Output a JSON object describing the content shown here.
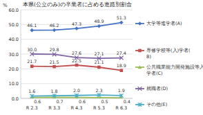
{
  "chart_data": {
    "type": "line",
    "title": "本県(公立のみ)の卒業者に占める進路別割合",
    "y_label": "%",
    "categories": [
      "R 2.3",
      "R 3.3",
      "R 4.3",
      "R 5.3",
      "R 6.3"
    ],
    "series": [
      {
        "name": "大学等進学者(A)",
        "color": "#4472c4",
        "marker": "diamond",
        "values": [
          46.1,
          46.2,
          47.3,
          48.9,
          51.3
        ],
        "value_labels": [
          "46.1",
          "46.2",
          "47.3",
          "48.9",
          "51.3"
        ]
      },
      {
        "name": "専修学校等(入)学者(B)",
        "color": "#c0504d",
        "marker": "square",
        "values": [
          21.7,
          21.5,
          22.5,
          21.1,
          18.9
        ],
        "value_labels": [
          "21.7",
          "21.5",
          "22.5",
          "21.1",
          "18.9"
        ]
      },
      {
        "name": "公共職業能力開発施設等入学者(C)",
        "color": "#9bbb59",
        "marker": "triangle",
        "values": [
          0.6,
          0.7,
          0.6,
          0.5,
          0.4
        ],
        "value_labels": [
          "0.6",
          "0.7",
          "0.6",
          "0.5",
          "0.4"
        ]
      },
      {
        "name": "就職者(D)",
        "color": "#8064a2",
        "marker": "x",
        "values": [
          30.0,
          29.8,
          27.6,
          27.1,
          27.4
        ],
        "value_labels": [
          "30.0",
          "29.8",
          "27.6",
          "27.1",
          "27.4"
        ]
      },
      {
        "name": "その他(E)",
        "color": "#4bacc6",
        "marker": "star",
        "values": [
          1.6,
          1.8,
          2.0,
          2.3,
          1.9
        ],
        "value_labels": [
          "1.6",
          "1.8",
          "2.0",
          "2.3",
          "1.9"
        ]
      }
    ],
    "ylim": [
      0,
      60
    ],
    "yticks": [
      {
        "value": 0,
        "label": "0.0"
      },
      {
        "value": 10,
        "label": "10.0"
      },
      {
        "value": 20,
        "label": "20.0"
      },
      {
        "value": 30,
        "label": "30.0"
      },
      {
        "value": 40,
        "label": "40.0"
      },
      {
        "value": 50,
        "label": "50.0"
      },
      {
        "value": 60,
        "label": "60.0"
      }
    ],
    "grid": true,
    "data_labels": true,
    "legend": "right"
  }
}
